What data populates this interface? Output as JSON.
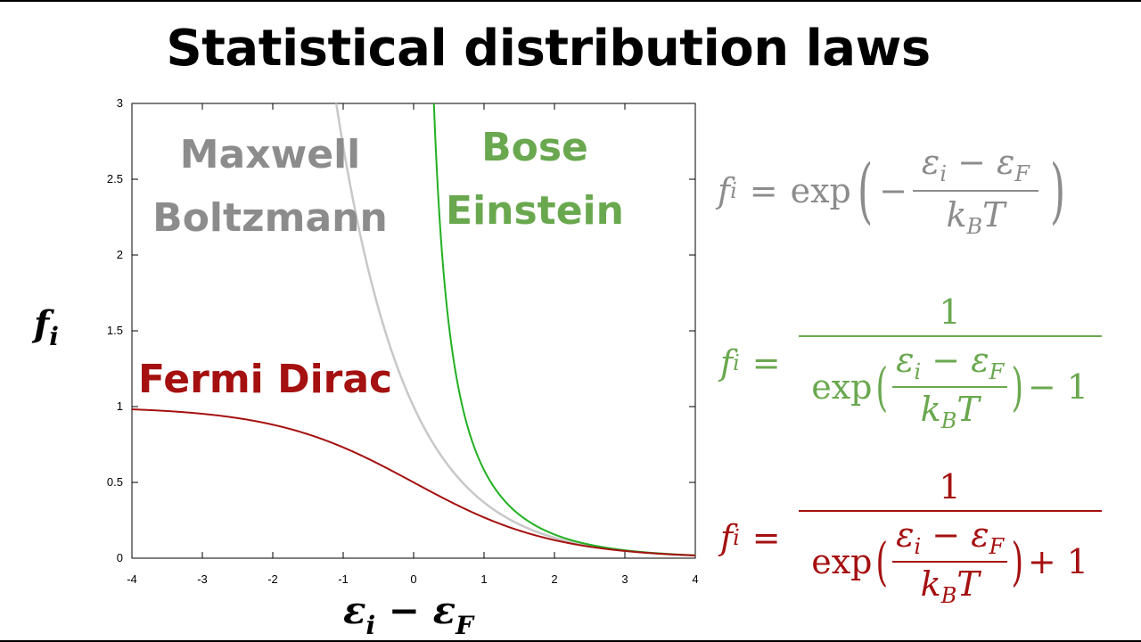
{
  "slide": {
    "title": "Statistical distribution laws"
  },
  "labels": {
    "maxwell_line1": "Maxwell",
    "maxwell_line2": "Boltzmann",
    "bose_line1": "Bose",
    "bose_line2": "Einstein",
    "fermi": "Fermi Dirac"
  },
  "colors": {
    "maxwell": "#8c8c8c",
    "bose": "#6aa84f",
    "fermi": "#a51010",
    "bose_curve": "#22b022",
    "maxwell_curve": "#c8c8c8",
    "fermi_curve": "#a51010"
  },
  "equations": {
    "mb": {
      "lhs": "f",
      "lhs_sub": "i",
      "eq": "=",
      "func": "exp",
      "minus": "−",
      "num": "ε",
      "num_sub1": "i",
      "num_op": " − ε",
      "num_sub2": "F",
      "den": "k",
      "den_sub": "B",
      "den_T": "T"
    },
    "be": {
      "lhs": "f",
      "lhs_sub": "i",
      "eq": "=",
      "one": "1",
      "func": "exp",
      "num": "ε",
      "num_sub1": "i",
      "num_op": " − ε",
      "num_sub2": "F",
      "den": "k",
      "den_sub": "B",
      "den_T": "T",
      "tail": "− 1"
    },
    "fd": {
      "lhs": "f",
      "lhs_sub": "i",
      "eq": "=",
      "one": "1",
      "func": "exp",
      "num": "ε",
      "num_sub1": "i",
      "num_op": " − ε",
      "num_sub2": "F",
      "den": "k",
      "den_sub": "B",
      "den_T": "T",
      "tail": "+ 1"
    }
  },
  "axes": {
    "ylabel_main": "f",
    "ylabel_sub": "i",
    "xlabel_a": "ε",
    "xlabel_a_sub": "i",
    "xlabel_op": " − ε",
    "xlabel_b_sub": "F"
  },
  "chart_data": {
    "type": "line",
    "xlim": [
      -4,
      4
    ],
    "ylim": [
      0,
      3
    ],
    "x_ticks": [
      -4,
      -3,
      -2,
      -1,
      0,
      1,
      2,
      3,
      4
    ],
    "y_ticks": [
      0,
      0.5,
      1,
      1.5,
      2,
      2.5,
      3
    ],
    "x_tick_labels": [
      "-4",
      "-3",
      "-2",
      "-1",
      "0",
      "1",
      "2",
      "3",
      "4"
    ],
    "y_tick_labels": [
      "0",
      "0.5",
      "1",
      "1.5",
      "2",
      "2.5",
      "3"
    ],
    "grid": false,
    "series": [
      {
        "name": "Maxwell Boltzmann",
        "function": "exp(-x)",
        "color": "#c8c8c8"
      },
      {
        "name": "Bose Einstein",
        "function": "1/(exp(x)-1)",
        "color": "#22b022"
      },
      {
        "name": "Fermi Dirac",
        "function": "1/(exp(x)+1)",
        "color": "#a51010"
      }
    ]
  }
}
